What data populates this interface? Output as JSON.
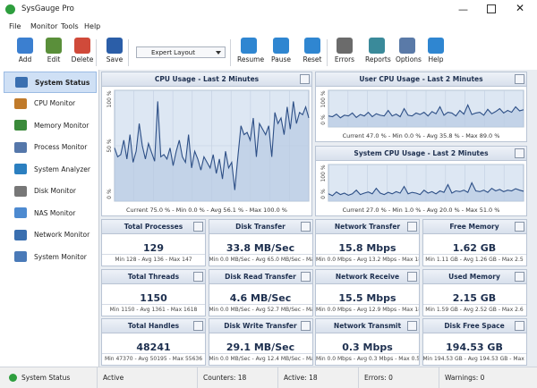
{
  "window": {
    "title": "SysGauge Pro"
  },
  "menu": [
    "File",
    "Monitor",
    "Tools",
    "Help"
  ],
  "toolbar": [
    "Add",
    "Edit",
    "Delete",
    "Save",
    "Resume",
    "Pause",
    "Reset",
    "Errors",
    "Reports",
    "Options",
    "Help"
  ],
  "layout_select": "Expert Layout",
  "sidebar": [
    "System Status",
    "CPU Monitor",
    "Memory Monitor",
    "Process Monitor",
    "System Analyzer",
    "Disk Monitor",
    "NAS Monitor",
    "Network Monitor",
    "System Monitor"
  ],
  "graphs": [
    {
      "title": "CPU Usage - Last 2 Minutes",
      "footer": "Current 75.0 % - Min 0.0 % - Avg 56.1 % - Max 100.0 %",
      "ylim": [
        0,
        100
      ],
      "yticks": [
        {
          "value": 0,
          "label": "0 %"
        },
        {
          "value": 50,
          "label": "50 %"
        },
        {
          "value": 100,
          "label": "100 %"
        }
      ],
      "values": [
        48,
        40,
        42,
        55,
        38,
        60,
        35,
        45,
        70,
        50,
        38,
        52,
        44,
        36,
        90,
        40,
        42,
        38,
        48,
        32,
        45,
        55,
        40,
        35,
        60,
        30,
        45,
        38,
        28,
        40,
        35,
        30,
        42,
        25,
        38,
        20,
        45,
        30,
        35,
        10,
        40,
        68,
        60,
        62,
        55,
        75,
        40,
        70,
        65,
        60,
        68,
        40,
        80,
        70,
        75,
        60,
        85,
        65,
        90,
        70,
        80,
        78,
        85,
        75
      ]
    },
    {
      "title": "User CPU Usage - Last 2 Minutes",
      "footer": "Current 47.0 % - Min 0.0 % - Avg 35.8 % - Max 89.0 %",
      "ylim": [
        0,
        100
      ],
      "yticks": [
        {
          "value": 0,
          "label": "0 %"
        },
        {
          "value": 100,
          "label": "100 %"
        }
      ],
      "values": [
        30,
        28,
        35,
        25,
        32,
        30,
        38,
        26,
        34,
        30,
        40,
        28,
        36,
        32,
        30,
        45,
        30,
        35,
        28,
        50,
        32,
        30,
        38,
        34,
        40,
        30,
        42,
        36,
        55,
        32,
        40,
        38,
        30,
        45,
        35,
        60,
        34,
        38,
        40,
        32,
        48,
        36,
        42,
        50,
        38,
        45,
        40,
        55,
        44,
        47
      ]
    },
    {
      "title": "System CPU Usage - Last 2 Minutes",
      "footer": "Current 27.0 % - Min 1.0 % - Avg 20.0 % - Max 51.0 %",
      "ylim": [
        0,
        100
      ],
      "yticks": [
        {
          "value": 0,
          "label": "0 %"
        },
        {
          "value": 100,
          "label": "100 %"
        }
      ],
      "values": [
        20,
        15,
        25,
        18,
        22,
        16,
        20,
        30,
        18,
        22,
        25,
        20,
        35,
        22,
        18,
        24,
        20,
        26,
        22,
        40,
        20,
        24,
        22,
        18,
        30,
        22,
        26,
        20,
        28,
        24,
        45,
        22,
        28,
        26,
        30,
        24,
        50,
        28,
        26,
        30,
        24,
        35,
        28,
        32,
        26,
        30,
        28,
        34,
        30,
        27
      ]
    }
  ],
  "cards": [
    {
      "title": "Total Processes",
      "value": "129",
      "footer": "Min 128 - Avg 136 - Max 147"
    },
    {
      "title": "Disk Transfer",
      "value": "33.8 MB/Sec",
      "footer": "Min 0.0 MB/Sec - Avg 65.0 MB/Sec - Max"
    },
    {
      "title": "Network Transfer",
      "value": "15.8 Mbps",
      "footer": "Min 0.0 Mbps - Avg 13.2 Mbps - Max 18.9"
    },
    {
      "title": "Free Memory",
      "value": "1.62 GB",
      "footer": "Min 1.11 GB - Avg 1.26 GB - Max 2.5"
    },
    {
      "title": "Total Threads",
      "value": "1150",
      "footer": "Min 1150 - Avg 1361 - Max 1618"
    },
    {
      "title": "Disk Read Transfer",
      "value": "4.6 MB/Sec",
      "footer": "Min 0.0 MB/Sec - Avg 52.7 MB/Sec - Max"
    },
    {
      "title": "Network Receive",
      "value": "15.5 Mbps",
      "footer": "Min 0.0 Mbps - Avg 12.9 Mbps - Max 18.6"
    },
    {
      "title": "Used Memory",
      "value": "2.15 GB",
      "footer": "Min 1.59 GB - Avg 2.52 GB - Max 2.6"
    },
    {
      "title": "Total Handles",
      "value": "48241",
      "footer": "Min 47370 - Avg 50195 - Max 55636"
    },
    {
      "title": "Disk Write Transfer",
      "value": "29.1 MB/Sec",
      "footer": "Min 0.0 MB/Sec - Avg 12.4 MB/Sec - Max"
    },
    {
      "title": "Network Transmit",
      "value": "0.3 Mbps",
      "footer": "Min 0.0 Mbps - Avg 0.3 Mbps - Max 0.5 M"
    },
    {
      "title": "Disk Free Space",
      "value": "194.53 GB",
      "footer": "Min 194.53 GB - Avg 194.53 GB - Max 1"
    }
  ],
  "status": [
    "System Status",
    "Active",
    "Counters: 18",
    "Active: 18",
    "Errors: 0",
    "Warnings: 0"
  ]
}
